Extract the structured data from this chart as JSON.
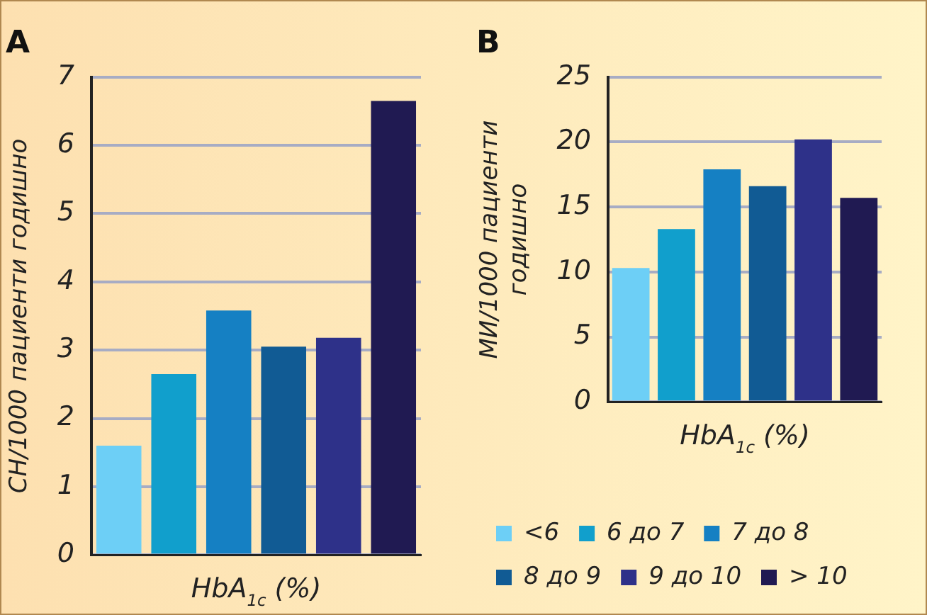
{
  "chart_data": [
    {
      "type": "bar",
      "title": "A",
      "xlabel": "HbA$_{1c}$ (%)",
      "ylabel": "СН/1000 пациенти годишно",
      "categories": [
        null
      ],
      "series": [
        {
          "color": "#6dcff6",
          "values": [
            1.6
          ]
        },
        {
          "color": "#119fcc",
          "values": [
            2.65
          ]
        },
        {
          "color": "#1580c3",
          "values": [
            3.58
          ]
        },
        {
          "color": "#115b94",
          "values": [
            3.05
          ]
        },
        {
          "color": "#2e3189",
          "values": [
            3.18
          ]
        },
        {
          "color": "#201a52",
          "values": [
            6.65
          ]
        }
      ],
      "ylim": [
        0,
        7
      ],
      "yticks": [
        0,
        1,
        2,
        3,
        4,
        5,
        6,
        7
      ],
      "grid": "y",
      "tick_labels": "y",
      "legend": false
    },
    {
      "type": "bar",
      "title": "B",
      "xlabel": "HbA$_{1c}$ (%)",
      "ylabel": "МИ/1000 пациенти годишно",
      "categories": [
        null
      ],
      "series": [
        {
          "name": "<6",
          "color": "#6dcff6",
          "values": [
            10.3
          ]
        },
        {
          "name": "6 до 7",
          "color": "#119fcc",
          "values": [
            13.3
          ]
        },
        {
          "name": "7 до 8",
          "color": "#1580c3",
          "values": [
            17.9
          ]
        },
        {
          "name": "8 до 9",
          "color": "#115b94",
          "values": [
            16.6
          ]
        },
        {
          "name": "9 до 10",
          "color": "#2e3189",
          "values": [
            20.2
          ]
        },
        {
          "name": "> 10",
          "color": "#201a52",
          "values": [
            15.7
          ]
        }
      ],
      "ylim": [
        0,
        25
      ],
      "yticks": [
        0,
        5,
        10,
        15,
        20,
        25
      ],
      "grid": "y",
      "tick_labels": "y",
      "legend": "bottom"
    }
  ]
}
